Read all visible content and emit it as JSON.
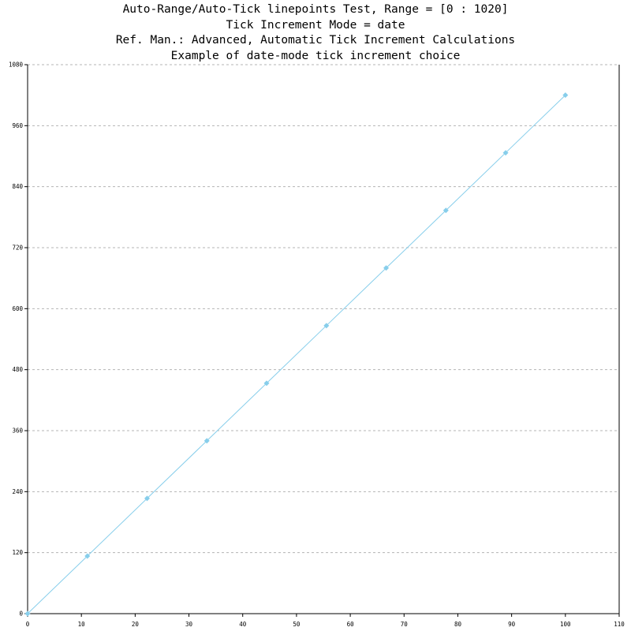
{
  "chart_data": {
    "type": "line",
    "title": [
      "Auto-Range/Auto-Tick linepoints Test, Range = [0 : 1020]",
      "Tick Increment Mode = date",
      "Ref. Man.: Advanced, Automatic Tick Increment Calculations",
      "Example of date-mode tick increment choice"
    ],
    "xlabel": "",
    "ylabel": "",
    "xlim": [
      0,
      110
    ],
    "ylim": [
      0,
      1080
    ],
    "x_ticks": [
      0,
      10,
      20,
      30,
      40,
      50,
      60,
      70,
      80,
      90,
      100,
      110
    ],
    "y_ticks": [
      0,
      120,
      240,
      360,
      480,
      600,
      720,
      840,
      960,
      1080
    ],
    "grid": "horizontal dashed",
    "legend": "none",
    "series": [
      {
        "color": "#87ceeb",
        "marker": "diamond",
        "x": [
          0,
          11.11,
          22.22,
          33.33,
          44.44,
          55.56,
          66.67,
          77.78,
          88.89,
          100
        ],
        "y": [
          0,
          113.33,
          226.67,
          340,
          453.33,
          566.67,
          680,
          793.33,
          906.67,
          1020
        ]
      }
    ]
  }
}
